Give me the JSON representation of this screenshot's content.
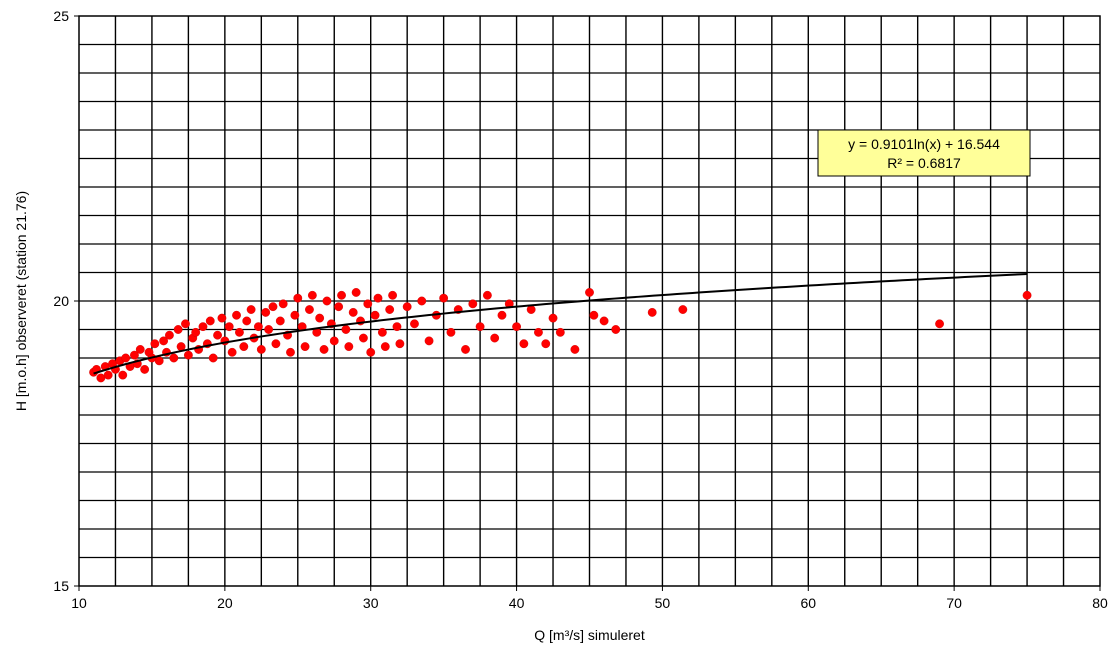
{
  "chart_data": {
    "type": "scatter",
    "title": "",
    "xlabel": "Q  [m³/s] simuleret",
    "ylabel": "H [m.o.h] observeret (station 21.76)",
    "xlim": [
      10,
      80
    ],
    "ylim": [
      15,
      25
    ],
    "x_ticks": [
      10,
      20,
      30,
      40,
      50,
      60,
      70,
      80
    ],
    "y_ticks": [
      15,
      20,
      25
    ],
    "x_tick_labels": [
      "10",
      "20",
      "30",
      "40",
      "50",
      "60",
      "70",
      "80"
    ],
    "y_tick_labels": [
      "15",
      "20",
      "25"
    ],
    "grid": true,
    "legend": "none",
    "series": [
      {
        "kind": "points",
        "color": "#ff0000",
        "points": [
          [
            11.0,
            18.75
          ],
          [
            11.2,
            18.8
          ],
          [
            11.5,
            18.65
          ],
          [
            11.8,
            18.85
          ],
          [
            12.0,
            18.7
          ],
          [
            12.3,
            18.9
          ],
          [
            12.5,
            18.8
          ],
          [
            12.8,
            18.95
          ],
          [
            13.0,
            18.7
          ],
          [
            13.2,
            19.0
          ],
          [
            13.5,
            18.85
          ],
          [
            13.8,
            19.05
          ],
          [
            14.0,
            18.9
          ],
          [
            14.2,
            19.15
          ],
          [
            14.5,
            18.8
          ],
          [
            14.8,
            19.1
          ],
          [
            15.0,
            19.0
          ],
          [
            15.2,
            19.25
          ],
          [
            15.5,
            18.95
          ],
          [
            15.8,
            19.3
          ],
          [
            16.0,
            19.1
          ],
          [
            16.2,
            19.4
          ],
          [
            16.5,
            19.0
          ],
          [
            16.8,
            19.5
          ],
          [
            17.0,
            19.2
          ],
          [
            17.3,
            19.6
          ],
          [
            17.5,
            19.05
          ],
          [
            17.8,
            19.35
          ],
          [
            18.0,
            19.45
          ],
          [
            18.2,
            19.15
          ],
          [
            18.5,
            19.55
          ],
          [
            18.8,
            19.25
          ],
          [
            19.0,
            19.65
          ],
          [
            19.2,
            19.0
          ],
          [
            19.5,
            19.4
          ],
          [
            19.8,
            19.7
          ],
          [
            20.0,
            19.3
          ],
          [
            20.3,
            19.55
          ],
          [
            20.5,
            19.1
          ],
          [
            20.8,
            19.75
          ],
          [
            21.0,
            19.45
          ],
          [
            21.3,
            19.2
          ],
          [
            21.5,
            19.65
          ],
          [
            21.8,
            19.85
          ],
          [
            22.0,
            19.35
          ],
          [
            22.3,
            19.55
          ],
          [
            22.5,
            19.15
          ],
          [
            22.8,
            19.8
          ],
          [
            23.0,
            19.5
          ],
          [
            23.3,
            19.9
          ],
          [
            23.5,
            19.25
          ],
          [
            23.8,
            19.65
          ],
          [
            24.0,
            19.95
          ],
          [
            24.3,
            19.4
          ],
          [
            24.5,
            19.1
          ],
          [
            24.8,
            19.75
          ],
          [
            25.0,
            20.05
          ],
          [
            25.3,
            19.55
          ],
          [
            25.5,
            19.2
          ],
          [
            25.8,
            19.85
          ],
          [
            26.0,
            20.1
          ],
          [
            26.3,
            19.45
          ],
          [
            26.5,
            19.7
          ],
          [
            26.8,
            19.15
          ],
          [
            27.0,
            20.0
          ],
          [
            27.3,
            19.6
          ],
          [
            27.5,
            19.3
          ],
          [
            27.8,
            19.9
          ],
          [
            28.0,
            20.1
          ],
          [
            28.3,
            19.5
          ],
          [
            28.5,
            19.2
          ],
          [
            28.8,
            19.8
          ],
          [
            29.0,
            20.15
          ],
          [
            29.3,
            19.65
          ],
          [
            29.5,
            19.35
          ],
          [
            29.8,
            19.95
          ],
          [
            30.0,
            19.1
          ],
          [
            30.3,
            19.75
          ],
          [
            30.5,
            20.05
          ],
          [
            30.8,
            19.45
          ],
          [
            31.0,
            19.2
          ],
          [
            31.3,
            19.85
          ],
          [
            31.5,
            20.1
          ],
          [
            31.8,
            19.55
          ],
          [
            32.0,
            19.25
          ],
          [
            32.5,
            19.9
          ],
          [
            33.0,
            19.6
          ],
          [
            33.5,
            20.0
          ],
          [
            34.0,
            19.3
          ],
          [
            34.5,
            19.75
          ],
          [
            35.0,
            20.05
          ],
          [
            35.5,
            19.45
          ],
          [
            36.0,
            19.85
          ],
          [
            36.5,
            19.15
          ],
          [
            37.0,
            19.95
          ],
          [
            37.5,
            19.55
          ],
          [
            38.0,
            20.1
          ],
          [
            38.5,
            19.35
          ],
          [
            39.0,
            19.75
          ],
          [
            39.5,
            19.95
          ],
          [
            40.0,
            19.55
          ],
          [
            40.5,
            19.25
          ],
          [
            41.0,
            19.85
          ],
          [
            41.5,
            19.45
          ],
          [
            42.0,
            19.25
          ],
          [
            42.5,
            19.7
          ],
          [
            43.0,
            19.45
          ],
          [
            44.0,
            19.15
          ],
          [
            45.0,
            20.15
          ],
          [
            45.3,
            19.75
          ],
          [
            46.0,
            19.65
          ],
          [
            46.8,
            19.5
          ],
          [
            49.3,
            19.8
          ],
          [
            51.4,
            19.85
          ],
          [
            69.0,
            19.6
          ],
          [
            75.0,
            20.1
          ]
        ]
      },
      {
        "kind": "trendline",
        "color": "#000000",
        "formula": "log",
        "a": 0.9101,
        "b": 16.544,
        "x_range": [
          11,
          75
        ]
      }
    ],
    "annotations": [
      {
        "lines": [
          "y = 0.9101ln(x) + 16.544",
          "R² = 0.6817"
        ],
        "box_fill": "#ffff99",
        "box_stroke": "#000000"
      }
    ]
  }
}
